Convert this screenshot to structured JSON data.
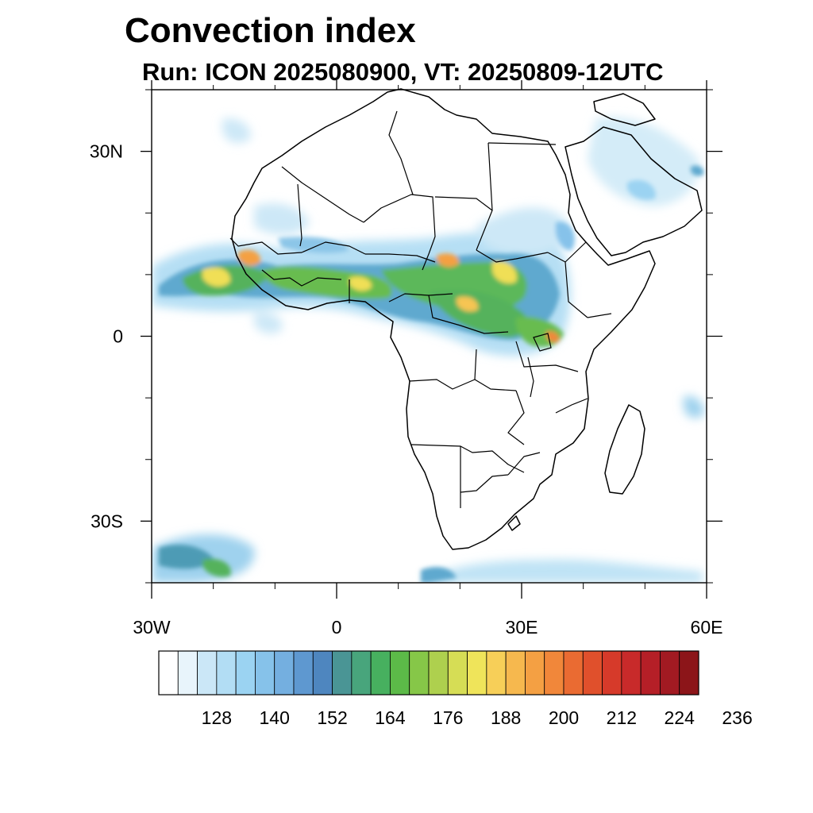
{
  "title": "Convection index",
  "subtitle": "Run: ICON 2025080900,  VT: 20250809-12UTC",
  "map": {
    "lon_range": [
      -30,
      60
    ],
    "lat_range": [
      -40,
      40
    ],
    "lat_labels": [
      {
        "lat": 30,
        "text": "30N"
      },
      {
        "lat": 0,
        "text": "0"
      },
      {
        "lat": -30,
        "text": "30S"
      }
    ],
    "lon_labels": [
      {
        "lon": -30,
        "text": "30W"
      },
      {
        "lon": 0,
        "text": "0"
      },
      {
        "lon": 30,
        "text": "30E"
      },
      {
        "lon": 60,
        "text": "60E"
      }
    ],
    "lat_minor_ticks": [
      -40,
      -20,
      -10,
      10,
      20,
      40
    ],
    "lon_minor_ticks": [
      -20,
      -10,
      10,
      20,
      40,
      50
    ]
  },
  "colorbar": {
    "colors": [
      "#ffffff",
      "#e8f4fb",
      "#cbe7f7",
      "#b2ddf4",
      "#9bd3f2",
      "#86c2ea",
      "#74afe0",
      "#5e98d0",
      "#4e86bf",
      "#4a9595",
      "#48a57c",
      "#47b05f",
      "#5cba48",
      "#86c748",
      "#aed04e",
      "#d6dd55",
      "#efe45a",
      "#f7cf58",
      "#f6b84e",
      "#f4a043",
      "#f1873a",
      "#ea6b32",
      "#e0502c",
      "#d63a2a",
      "#c82a2a",
      "#b51f27",
      "#a21a22",
      "#8c1519"
    ],
    "labels": [
      "128",
      "140",
      "152",
      "164",
      "176",
      "188",
      "200",
      "212",
      "224",
      "236"
    ]
  }
}
